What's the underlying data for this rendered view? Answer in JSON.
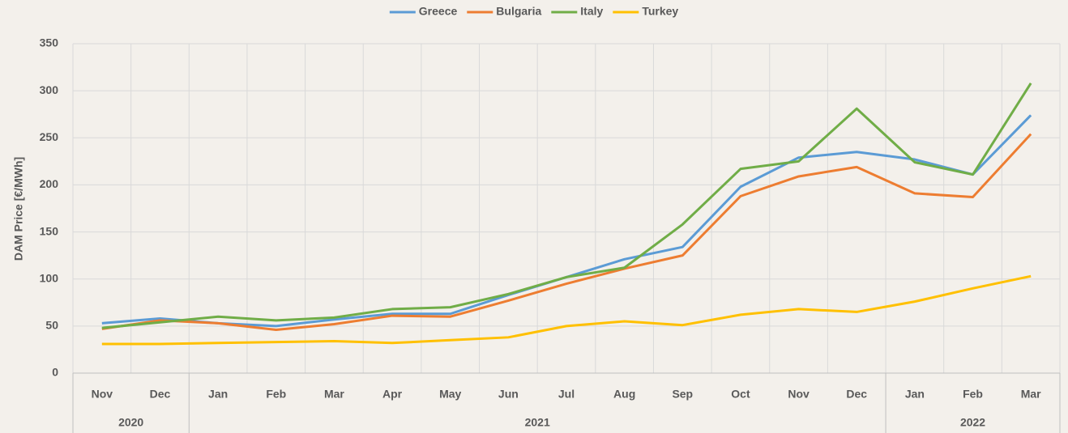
{
  "chart_data": {
    "type": "line",
    "y_label": "DAM Price [€/MWh]",
    "categories": [
      "Nov",
      "Dec",
      "Jan",
      "Feb",
      "Mar",
      "Apr",
      "May",
      "Jun",
      "Jul",
      "Aug",
      "Sep",
      "Oct",
      "Nov",
      "Dec",
      "Jan",
      "Feb",
      "Mar"
    ],
    "category_years": [
      "2020",
      "2020",
      "2021",
      "2021",
      "2021",
      "2021",
      "2021",
      "2021",
      "2021",
      "2021",
      "2021",
      "2021",
      "2021",
      "2021",
      "2022",
      "2022",
      "2022"
    ],
    "series": [
      {
        "name": "Greece",
        "color": "#5b9bd5",
        "values": [
          53,
          58,
          53,
          50,
          57,
          63,
          63,
          83,
          102,
          121,
          134,
          198,
          229,
          235,
          227,
          211,
          274
        ]
      },
      {
        "name": "Bulgaria",
        "color": "#ed7d31",
        "values": [
          47,
          56,
          53,
          46,
          52,
          61,
          60,
          77,
          95,
          111,
          125,
          188,
          209,
          219,
          191,
          187,
          254
        ]
      },
      {
        "name": "Italy",
        "color": "#70ad47",
        "values": [
          48,
          54,
          60,
          56,
          59,
          68,
          70,
          84,
          102,
          112,
          158,
          217,
          225,
          281,
          224,
          211,
          308
        ]
      },
      {
        "name": "Turkey",
        "color": "#ffc000",
        "values": [
          31,
          31,
          32,
          33,
          34,
          32,
          35,
          38,
          50,
          55,
          51,
          62,
          68,
          65,
          76,
          90,
          103
        ]
      }
    ],
    "ylim": [
      0,
      350
    ],
    "yticks": [
      0,
      50,
      100,
      150,
      200,
      250,
      300,
      350
    ],
    "grid": true,
    "legend": "top"
  }
}
